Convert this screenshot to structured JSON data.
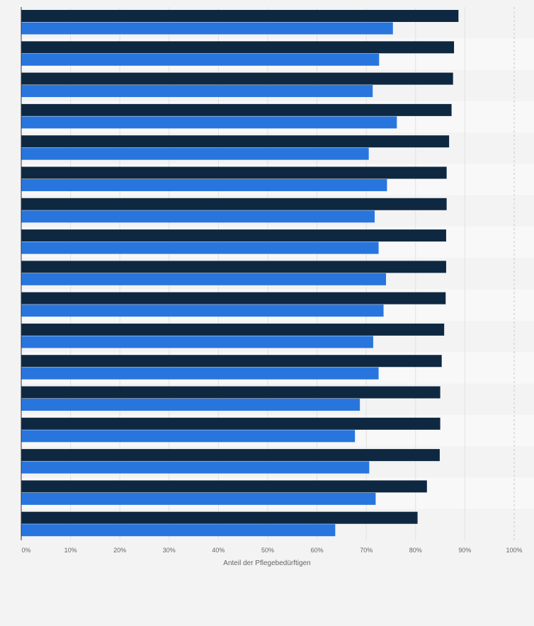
{
  "chart_data": {
    "type": "bar",
    "orientation": "horizontal",
    "categories": [
      "",
      "",
      "",
      "",
      "",
      "",
      "",
      "",
      "",
      "",
      "",
      "",
      "",
      "",
      "",
      "",
      ""
    ],
    "series": [
      {
        "values": [
          88.7,
          87.8,
          87.6,
          87.3,
          86.8,
          86.3,
          86.3,
          86.2,
          86.2,
          86.1,
          85.8,
          85.3,
          85.0,
          85.0,
          84.9,
          82.3,
          80.4
        ]
      },
      {
        "values": [
          75.4,
          72.6,
          71.3,
          76.2,
          70.5,
          74.2,
          71.7,
          72.5,
          74.0,
          73.5,
          71.4,
          72.5,
          68.7,
          67.7,
          70.6,
          71.9,
          63.7
        ]
      }
    ],
    "colors": [
      "#0f2841",
      "#2876dd"
    ],
    "xlim": [
      0,
      100
    ],
    "ticks": [
      0,
      10,
      20,
      30,
      40,
      50,
      60,
      70,
      80,
      90,
      100
    ],
    "tick_labels": [
      "0%",
      "10%",
      "20%",
      "30%",
      "40%",
      "50%",
      "60%",
      "70%",
      "80%",
      "90%",
      "100%"
    ],
    "xlabel": "Anteil der Pflegebedürftigen",
    "grid": true
  }
}
